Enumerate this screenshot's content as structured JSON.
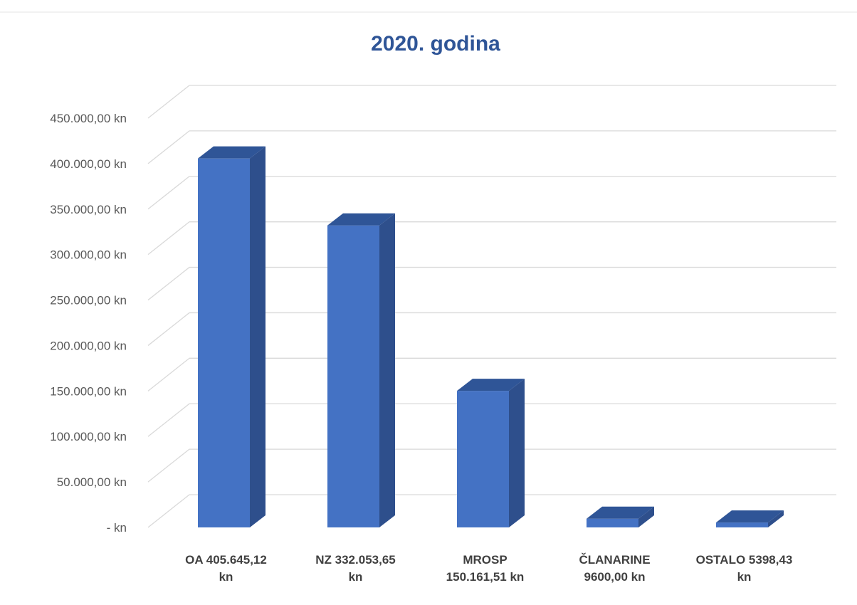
{
  "chart_data": {
    "type": "bar",
    "style": "3d-column",
    "title": "2020. godina",
    "categories": [
      [
        "OA 405.645,12",
        "kn"
      ],
      [
        "NZ 332.053,65",
        "kn"
      ],
      [
        "MROSP",
        "150.161,51 kn"
      ],
      [
        "ČLANARINE",
        "9600,00 kn"
      ],
      [
        "OSTALO 5398,43",
        "kn"
      ]
    ],
    "values": [
      405645.12,
      332053.65,
      150161.51,
      9600.0,
      5398.43
    ],
    "ylim": [
      0,
      450000
    ],
    "yticks": [
      0,
      50000,
      100000,
      150000,
      200000,
      250000,
      300000,
      350000,
      400000,
      450000
    ],
    "ytick_labels": [
      "-   kn",
      "50.000,00 kn",
      "100.000,00 kn",
      "150.000,00 kn",
      "200.000,00 kn",
      "250.000,00 kn",
      "300.000,00 kn",
      "350.000,00 kn",
      "400.000,00 kn",
      "450.000,00 kn"
    ],
    "grid": true,
    "legend": "none",
    "xlabel": "",
    "ylabel": ""
  },
  "colors": {
    "bar_front": "#4472c4",
    "bar_side": "#2e4f8c",
    "bar_top": "#2f5597",
    "title": "#2f5597",
    "tick_text": "#595959",
    "category_text": "#404040",
    "grid": "#d9d9d9"
  }
}
